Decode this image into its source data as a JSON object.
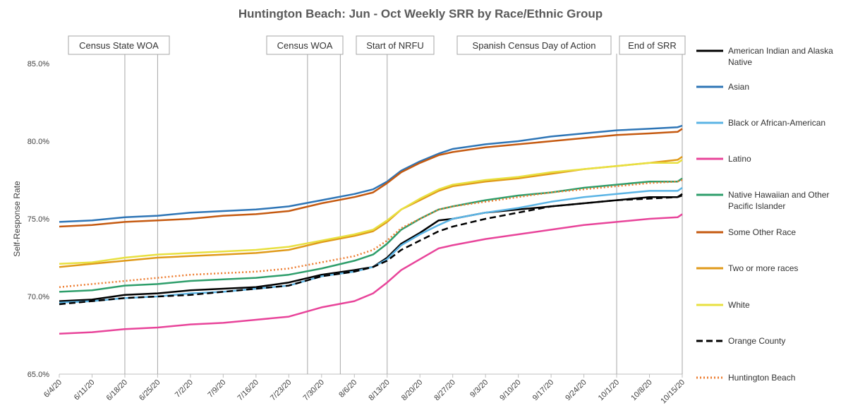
{
  "chart_data": {
    "type": "line",
    "title": "Huntington Beach: Jun - Oct Weekly SRR by Race/Ethnic Group",
    "ylabel": "Self-Response Rate",
    "xlabel": "",
    "ylim": [
      0.65,
      0.85
    ],
    "yticks": [
      "65.0%",
      "70.0%",
      "75.0%",
      "80.0%",
      "85.0%"
    ],
    "xlim": [
      "2020-06-04",
      "2020-10-15"
    ],
    "xticks": [
      "6/4/20",
      "6/11/20",
      "6/18/20",
      "6/25/20",
      "7/2/20",
      "7/9/20",
      "7/16/20",
      "7/23/20",
      "7/30/20",
      "8/6/20",
      "8/13/20",
      "8/20/20",
      "8/27/20",
      "9/3/20",
      "9/10/20",
      "9/17/20",
      "9/24/20",
      "10/1/20",
      "10/8/20",
      "10/15/20"
    ],
    "events": [
      {
        "label": "Census State WOA",
        "lines": [
          "2020-06-18",
          "2020-06-25"
        ]
      },
      {
        "label": "Census WOA",
        "lines": [
          "2020-07-27",
          "2020-08-03"
        ]
      },
      {
        "label": "Start of NRFU",
        "lines": [
          "2020-08-13"
        ]
      },
      {
        "label": "Spanish Census Day of Action",
        "lines": [
          "2020-10-01"
        ]
      },
      {
        "label": "End of SRR",
        "lines": [
          "2020-10-15"
        ]
      }
    ],
    "legend_position": "right",
    "series": [
      {
        "name": "American Indian and Alaska Native",
        "color": "#000000",
        "style": "solid",
        "points": [
          [
            "2020-06-04",
            69.7
          ],
          [
            "2020-06-11",
            69.8
          ],
          [
            "2020-06-18",
            70.1
          ],
          [
            "2020-06-25",
            70.2
          ],
          [
            "2020-07-02",
            70.4
          ],
          [
            "2020-07-09",
            70.5
          ],
          [
            "2020-07-16",
            70.6
          ],
          [
            "2020-07-23",
            70.9
          ],
          [
            "2020-07-30",
            71.4
          ],
          [
            "2020-08-06",
            71.7
          ],
          [
            "2020-08-10",
            71.9
          ],
          [
            "2020-08-13",
            72.5
          ],
          [
            "2020-08-16",
            73.4
          ],
          [
            "2020-08-20",
            74.1
          ],
          [
            "2020-08-24",
            74.9
          ],
          [
            "2020-08-27",
            75.0
          ],
          [
            "2020-09-03",
            75.4
          ],
          [
            "2020-09-10",
            75.6
          ],
          [
            "2020-09-17",
            75.8
          ],
          [
            "2020-09-24",
            76.0
          ],
          [
            "2020-10-01",
            76.2
          ],
          [
            "2020-10-08",
            76.4
          ],
          [
            "2020-10-14",
            76.4
          ],
          [
            "2020-10-15",
            76.6
          ]
        ]
      },
      {
        "name": "Asian",
        "color": "#2e75b6",
        "style": "solid",
        "points": [
          [
            "2020-06-04",
            74.8
          ],
          [
            "2020-06-11",
            74.9
          ],
          [
            "2020-06-18",
            75.1
          ],
          [
            "2020-06-25",
            75.2
          ],
          [
            "2020-07-02",
            75.4
          ],
          [
            "2020-07-09",
            75.5
          ],
          [
            "2020-07-16",
            75.6
          ],
          [
            "2020-07-23",
            75.8
          ],
          [
            "2020-07-30",
            76.2
          ],
          [
            "2020-08-06",
            76.6
          ],
          [
            "2020-08-10",
            76.9
          ],
          [
            "2020-08-13",
            77.4
          ],
          [
            "2020-08-16",
            78.1
          ],
          [
            "2020-08-20",
            78.7
          ],
          [
            "2020-08-24",
            79.2
          ],
          [
            "2020-08-27",
            79.5
          ],
          [
            "2020-09-03",
            79.8
          ],
          [
            "2020-09-10",
            80.0
          ],
          [
            "2020-09-17",
            80.3
          ],
          [
            "2020-09-24",
            80.5
          ],
          [
            "2020-10-01",
            80.7
          ],
          [
            "2020-10-08",
            80.8
          ],
          [
            "2020-10-14",
            80.9
          ],
          [
            "2020-10-15",
            81.0
          ]
        ]
      },
      {
        "name": "Black or African-American",
        "color": "#5bb4e5",
        "style": "solid",
        "points": [
          [
            "2020-06-04",
            69.6
          ],
          [
            "2020-06-11",
            69.7
          ],
          [
            "2020-06-18",
            69.9
          ],
          [
            "2020-06-25",
            70.0
          ],
          [
            "2020-07-02",
            70.2
          ],
          [
            "2020-07-09",
            70.3
          ],
          [
            "2020-07-16",
            70.5
          ],
          [
            "2020-07-23",
            70.7
          ],
          [
            "2020-07-30",
            71.3
          ],
          [
            "2020-08-06",
            71.6
          ],
          [
            "2020-08-10",
            71.9
          ],
          [
            "2020-08-13",
            72.4
          ],
          [
            "2020-08-16",
            73.3
          ],
          [
            "2020-08-20",
            74.0
          ],
          [
            "2020-08-24",
            74.6
          ],
          [
            "2020-08-27",
            75.0
          ],
          [
            "2020-09-03",
            75.4
          ],
          [
            "2020-09-10",
            75.7
          ],
          [
            "2020-09-17",
            76.1
          ],
          [
            "2020-09-24",
            76.4
          ],
          [
            "2020-10-01",
            76.6
          ],
          [
            "2020-10-08",
            76.8
          ],
          [
            "2020-10-14",
            76.8
          ],
          [
            "2020-10-15",
            77.0
          ]
        ]
      },
      {
        "name": "Latino",
        "color": "#e8449a",
        "style": "solid",
        "points": [
          [
            "2020-06-04",
            67.6
          ],
          [
            "2020-06-11",
            67.7
          ],
          [
            "2020-06-18",
            67.9
          ],
          [
            "2020-06-25",
            68.0
          ],
          [
            "2020-07-02",
            68.2
          ],
          [
            "2020-07-09",
            68.3
          ],
          [
            "2020-07-16",
            68.5
          ],
          [
            "2020-07-23",
            68.7
          ],
          [
            "2020-07-30",
            69.3
          ],
          [
            "2020-08-06",
            69.7
          ],
          [
            "2020-08-10",
            70.2
          ],
          [
            "2020-08-13",
            70.9
          ],
          [
            "2020-08-16",
            71.7
          ],
          [
            "2020-08-20",
            72.4
          ],
          [
            "2020-08-24",
            73.1
          ],
          [
            "2020-08-27",
            73.3
          ],
          [
            "2020-09-03",
            73.7
          ],
          [
            "2020-09-10",
            74.0
          ],
          [
            "2020-09-17",
            74.3
          ],
          [
            "2020-09-24",
            74.6
          ],
          [
            "2020-10-01",
            74.8
          ],
          [
            "2020-10-08",
            75.0
          ],
          [
            "2020-10-14",
            75.1
          ],
          [
            "2020-10-15",
            75.3
          ]
        ]
      },
      {
        "name": "Native Hawaiian and Other Pacific Islander",
        "color": "#2e9e6b",
        "style": "solid",
        "points": [
          [
            "2020-06-04",
            70.3
          ],
          [
            "2020-06-11",
            70.4
          ],
          [
            "2020-06-18",
            70.7
          ],
          [
            "2020-06-25",
            70.8
          ],
          [
            "2020-07-02",
            71.0
          ],
          [
            "2020-07-09",
            71.1
          ],
          [
            "2020-07-16",
            71.2
          ],
          [
            "2020-07-23",
            71.4
          ],
          [
            "2020-07-30",
            71.8
          ],
          [
            "2020-08-06",
            72.3
          ],
          [
            "2020-08-10",
            72.7
          ],
          [
            "2020-08-13",
            73.4
          ],
          [
            "2020-08-16",
            74.3
          ],
          [
            "2020-08-20",
            75.0
          ],
          [
            "2020-08-24",
            75.6
          ],
          [
            "2020-08-27",
            75.8
          ],
          [
            "2020-09-03",
            76.2
          ],
          [
            "2020-09-10",
            76.5
          ],
          [
            "2020-09-17",
            76.7
          ],
          [
            "2020-09-24",
            77.0
          ],
          [
            "2020-10-01",
            77.2
          ],
          [
            "2020-10-08",
            77.4
          ],
          [
            "2020-10-14",
            77.4
          ],
          [
            "2020-10-15",
            77.6
          ]
        ]
      },
      {
        "name": "Some Other Race",
        "color": "#c55a11",
        "style": "solid",
        "points": [
          [
            "2020-06-04",
            74.5
          ],
          [
            "2020-06-11",
            74.6
          ],
          [
            "2020-06-18",
            74.8
          ],
          [
            "2020-06-25",
            74.9
          ],
          [
            "2020-07-02",
            75.0
          ],
          [
            "2020-07-09",
            75.2
          ],
          [
            "2020-07-16",
            75.3
          ],
          [
            "2020-07-23",
            75.5
          ],
          [
            "2020-07-30",
            76.0
          ],
          [
            "2020-08-06",
            76.4
          ],
          [
            "2020-08-10",
            76.7
          ],
          [
            "2020-08-13",
            77.3
          ],
          [
            "2020-08-16",
            78.0
          ],
          [
            "2020-08-20",
            78.6
          ],
          [
            "2020-08-24",
            79.1
          ],
          [
            "2020-08-27",
            79.3
          ],
          [
            "2020-09-03",
            79.6
          ],
          [
            "2020-09-10",
            79.8
          ],
          [
            "2020-09-17",
            80.0
          ],
          [
            "2020-09-24",
            80.2
          ],
          [
            "2020-10-01",
            80.4
          ],
          [
            "2020-10-08",
            80.5
          ],
          [
            "2020-10-14",
            80.6
          ],
          [
            "2020-10-15",
            80.8
          ]
        ]
      },
      {
        "name": "Two or more races",
        "color": "#e09a1a",
        "style": "solid",
        "points": [
          [
            "2020-06-04",
            71.9
          ],
          [
            "2020-06-11",
            72.1
          ],
          [
            "2020-06-18",
            72.3
          ],
          [
            "2020-06-25",
            72.5
          ],
          [
            "2020-07-02",
            72.6
          ],
          [
            "2020-07-09",
            72.7
          ],
          [
            "2020-07-16",
            72.8
          ],
          [
            "2020-07-23",
            73.0
          ],
          [
            "2020-07-30",
            73.5
          ],
          [
            "2020-08-06",
            73.9
          ],
          [
            "2020-08-10",
            74.2
          ],
          [
            "2020-08-13",
            74.8
          ],
          [
            "2020-08-16",
            75.6
          ],
          [
            "2020-08-20",
            76.2
          ],
          [
            "2020-08-24",
            76.8
          ],
          [
            "2020-08-27",
            77.1
          ],
          [
            "2020-09-03",
            77.4
          ],
          [
            "2020-09-10",
            77.6
          ],
          [
            "2020-09-17",
            77.9
          ],
          [
            "2020-09-24",
            78.2
          ],
          [
            "2020-10-01",
            78.4
          ],
          [
            "2020-10-08",
            78.6
          ],
          [
            "2020-10-14",
            78.8
          ],
          [
            "2020-10-15",
            79.0
          ]
        ]
      },
      {
        "name": "White",
        "color": "#e8e040",
        "style": "solid",
        "points": [
          [
            "2020-06-04",
            72.1
          ],
          [
            "2020-06-11",
            72.2
          ],
          [
            "2020-06-18",
            72.5
          ],
          [
            "2020-06-25",
            72.7
          ],
          [
            "2020-07-02",
            72.8
          ],
          [
            "2020-07-09",
            72.9
          ],
          [
            "2020-07-16",
            73.0
          ],
          [
            "2020-07-23",
            73.2
          ],
          [
            "2020-07-30",
            73.6
          ],
          [
            "2020-08-06",
            74.0
          ],
          [
            "2020-08-10",
            74.3
          ],
          [
            "2020-08-13",
            74.9
          ],
          [
            "2020-08-16",
            75.6
          ],
          [
            "2020-08-20",
            76.3
          ],
          [
            "2020-08-24",
            76.9
          ],
          [
            "2020-08-27",
            77.2
          ],
          [
            "2020-09-03",
            77.5
          ],
          [
            "2020-09-10",
            77.7
          ],
          [
            "2020-09-17",
            78.0
          ],
          [
            "2020-09-24",
            78.2
          ],
          [
            "2020-10-01",
            78.4
          ],
          [
            "2020-10-08",
            78.6
          ],
          [
            "2020-10-14",
            78.6
          ],
          [
            "2020-10-15",
            78.8
          ]
        ]
      },
      {
        "name": "Orange County",
        "color": "#000000",
        "style": "dashed",
        "points": [
          [
            "2020-06-04",
            69.5
          ],
          [
            "2020-06-11",
            69.7
          ],
          [
            "2020-06-18",
            69.9
          ],
          [
            "2020-06-25",
            70.0
          ],
          [
            "2020-07-02",
            70.1
          ],
          [
            "2020-07-09",
            70.3
          ],
          [
            "2020-07-16",
            70.5
          ],
          [
            "2020-07-23",
            70.7
          ],
          [
            "2020-07-30",
            71.3
          ],
          [
            "2020-08-06",
            71.6
          ],
          [
            "2020-08-10",
            71.9
          ],
          [
            "2020-08-13",
            72.3
          ],
          [
            "2020-08-16",
            73.0
          ],
          [
            "2020-08-20",
            73.6
          ],
          [
            "2020-08-24",
            74.2
          ],
          [
            "2020-08-27",
            74.5
          ],
          [
            "2020-09-03",
            75.0
          ],
          [
            "2020-09-10",
            75.4
          ],
          [
            "2020-09-17",
            75.8
          ],
          [
            "2020-09-24",
            76.0
          ],
          [
            "2020-10-01",
            76.2
          ],
          [
            "2020-10-08",
            76.3
          ],
          [
            "2020-10-14",
            76.4
          ],
          [
            "2020-10-15",
            76.5
          ]
        ]
      },
      {
        "name": "Huntington Beach",
        "color": "#ed7d31",
        "style": "dotted",
        "points": [
          [
            "2020-06-04",
            70.6
          ],
          [
            "2020-06-11",
            70.8
          ],
          [
            "2020-06-18",
            71.0
          ],
          [
            "2020-06-25",
            71.2
          ],
          [
            "2020-07-02",
            71.4
          ],
          [
            "2020-07-09",
            71.5
          ],
          [
            "2020-07-16",
            71.6
          ],
          [
            "2020-07-23",
            71.8
          ],
          [
            "2020-07-30",
            72.2
          ],
          [
            "2020-08-06",
            72.6
          ],
          [
            "2020-08-10",
            73.0
          ],
          [
            "2020-08-13",
            73.6
          ],
          [
            "2020-08-16",
            74.4
          ],
          [
            "2020-08-20",
            75.0
          ],
          [
            "2020-08-24",
            75.6
          ],
          [
            "2020-08-27",
            75.8
          ],
          [
            "2020-09-03",
            76.1
          ],
          [
            "2020-09-10",
            76.4
          ],
          [
            "2020-09-17",
            76.7
          ],
          [
            "2020-09-24",
            76.9
          ],
          [
            "2020-10-01",
            77.1
          ],
          [
            "2020-10-08",
            77.3
          ],
          [
            "2020-10-14",
            77.4
          ],
          [
            "2020-10-15",
            77.5
          ]
        ]
      }
    ]
  }
}
